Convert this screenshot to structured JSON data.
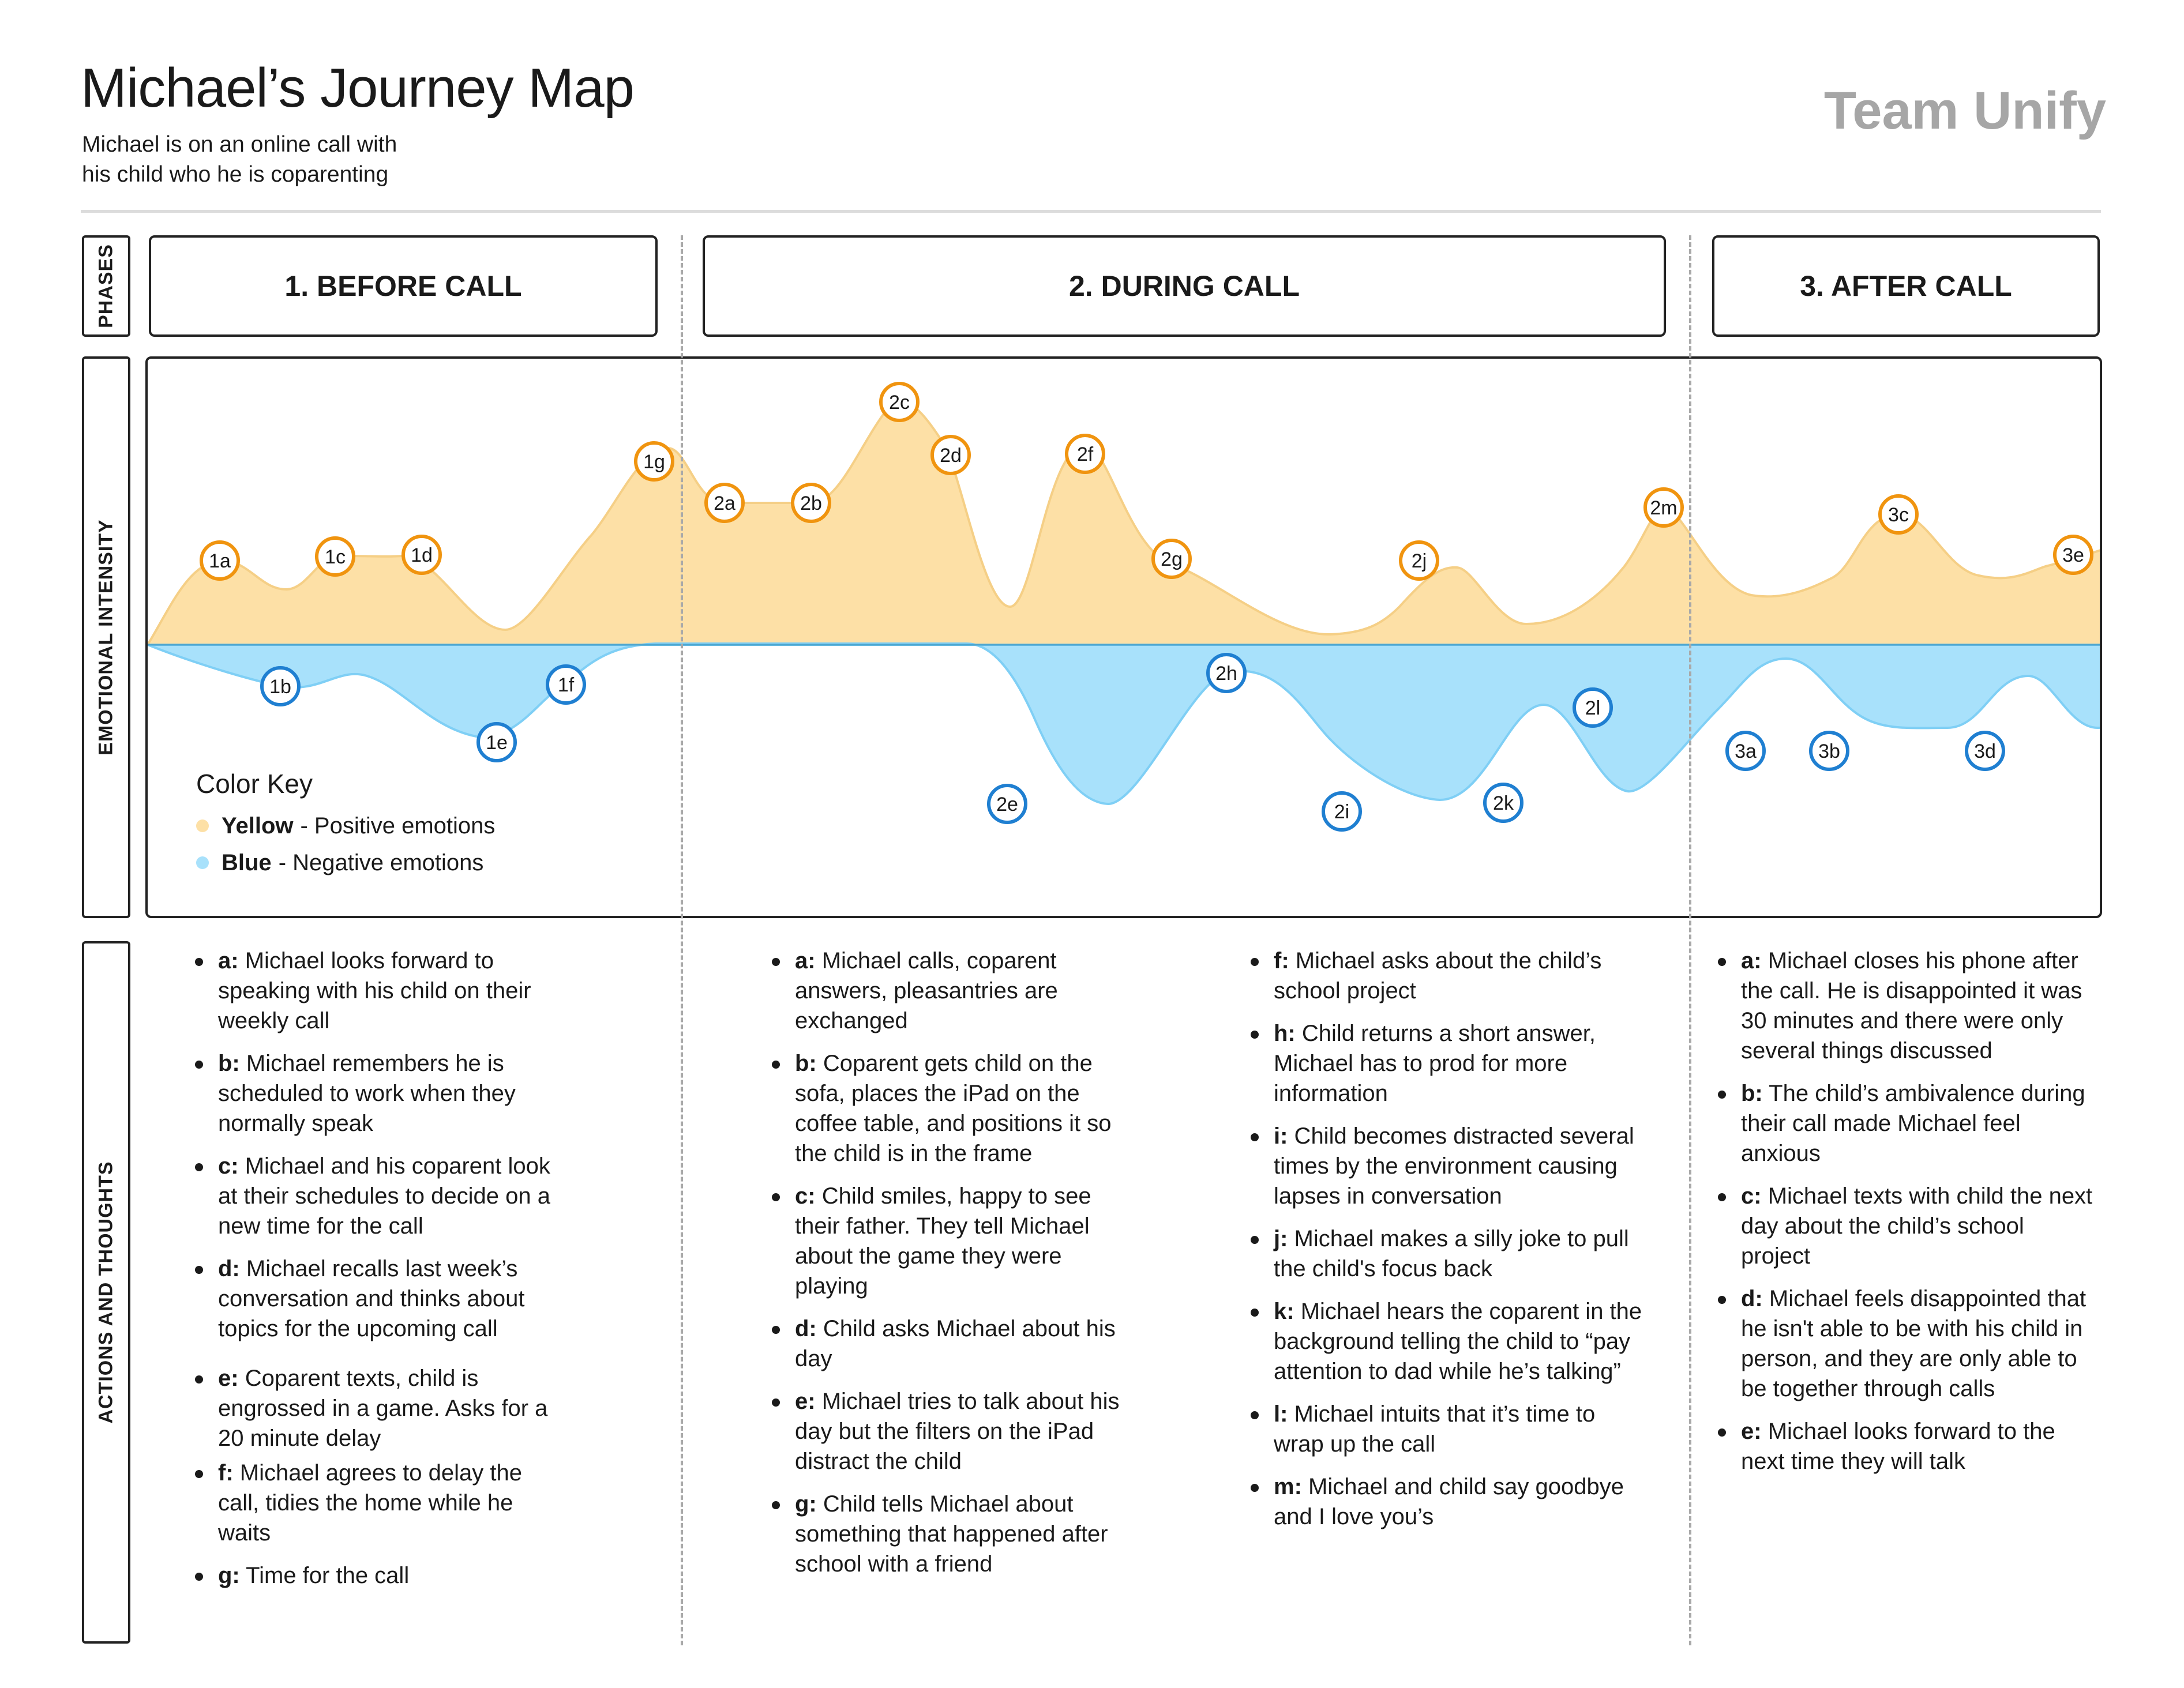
{
  "header": {
    "title": "Michael’s Journey Map",
    "subtitle_line1": "Michael is on an online call with",
    "subtitle_line2": "his child who he is coparenting",
    "team": "Team Unify"
  },
  "row_labels": {
    "phases": "PHASES",
    "emotional_intensity": "EMOTIONAL INTENSITY",
    "actions": "ACTIONS AND THOUGHTS"
  },
  "phases": [
    "1. BEFORE CALL",
    "2. DURING CALL",
    "3. AFTER CALL"
  ],
  "colors": {
    "positive_fill": "#fde0a6",
    "positive_stroke": "#f5cf86",
    "positive_marker": "#f0940f",
    "negative_fill": "#a8e1fb",
    "negative_stroke": "#7fcff5",
    "negative_marker": "#1f7fd1"
  },
  "color_key": {
    "title": "Color Key",
    "yellow_name": "Yellow",
    "yellow_desc": "- Positive emotions",
    "blue_name": "Blue",
    "blue_desc": "- Negative emotions"
  },
  "chart_data": {
    "type": "area",
    "positive_markers": [
      "1a",
      "1c",
      "1d",
      "1g",
      "2a",
      "2b",
      "2c",
      "2d",
      "2f",
      "2g",
      "2j",
      "2m",
      "3c",
      "3e"
    ],
    "negative_markers": [
      "1b",
      "1e",
      "1f",
      "2e",
      "2h",
      "2i",
      "2k",
      "2l",
      "3a",
      "3b",
      "3d"
    ]
  },
  "actions": {
    "before": [
      {
        "key": "a:",
        "text": "Michael looks forward to speaking with his child on their weekly call"
      },
      {
        "key": "b:",
        "text": "Michael remembers he is scheduled to work when they normally speak"
      },
      {
        "key": "c:",
        "text": "Michael and his coparent look at their schedules to decide on a new time for the call"
      },
      {
        "key": "d:",
        "text": "Michael recalls last week’s conversation and thinks about topics for the upcoming call"
      },
      {
        "key": "e:",
        "text": "Coparent texts, child is engrossed in a game. Asks for a 20 minute delay"
      },
      {
        "key": "f:",
        "text": "Michael agrees to delay the call, tidies the home while he waits"
      },
      {
        "key": "g:",
        "text": "Time for the call"
      }
    ],
    "during_1": [
      {
        "key": "a:",
        "text": "Michael calls, coparent answers, pleasantries are exchanged"
      },
      {
        "key": "b:",
        "text": "Coparent gets child on the sofa, places the iPad on the coffee table, and positions it so the child is in the frame"
      },
      {
        "key": "c:",
        "text": "Child smiles, happy to see their father. They tell Michael about the game they were playing"
      },
      {
        "key": "d:",
        "text": "Child asks Michael about his day"
      },
      {
        "key": "e:",
        "text": "Michael tries to talk about his day but the filters on the iPad distract the child"
      },
      {
        "key": "g:",
        "text": "Child tells Michael about something that happened after school with a friend"
      }
    ],
    "during_2": [
      {
        "key": "f:",
        "text": "Michael asks about the child’s school project"
      },
      {
        "key": "h:",
        "text": "Child returns a short answer, Michael has to prod for more information"
      },
      {
        "key": "i:",
        "text": "Child becomes distracted several times by the environment causing lapses in conversation"
      },
      {
        "key": "j:",
        "text": "Michael makes a silly joke to pull the child's focus back"
      },
      {
        "key": "k:",
        "text": "Michael hears the coparent in the background telling the child to “pay attention to dad while he’s talking”"
      },
      {
        "key": "l:",
        "text": "Michael intuits that it’s time to wrap up the call"
      },
      {
        "key": "m:",
        "text": "Michael and child say goodbye and I love you’s"
      }
    ],
    "after": [
      {
        "key": "a:",
        "text": "Michael closes his phone after the call. He is disappointed it was 30 minutes and there were only several things discussed"
      },
      {
        "key": "b:",
        "text": "The child’s ambivalence during their call made Michael feel anxious"
      },
      {
        "key": "c:",
        "text": "Michael texts with child the next day about the child’s school project"
      },
      {
        "key": "d:",
        "text": "Michael feels disappointed that he isn't able to be with his child in person, and they are only able to be together through calls"
      },
      {
        "key": "e:",
        "text": "Michael looks forward to the next time they will talk"
      }
    ]
  }
}
